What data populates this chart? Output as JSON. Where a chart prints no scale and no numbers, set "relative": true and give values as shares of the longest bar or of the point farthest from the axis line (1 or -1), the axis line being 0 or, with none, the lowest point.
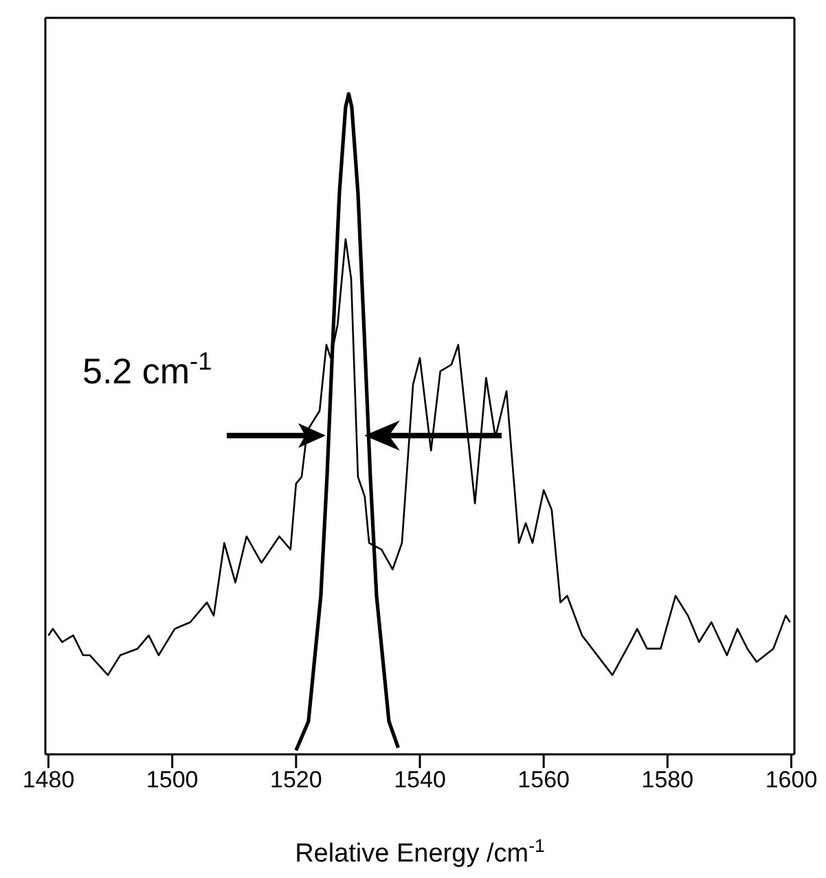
{
  "chart_data": {
    "type": "line",
    "xlabel": "Relative Energy /cm$^{-1}$",
    "relative": true,
    "xlim": [
      1479.5,
      1600.5
    ],
    "xticks": [
      1480,
      1500,
      1520,
      1540,
      1560,
      1580,
      1600
    ],
    "annotations": [
      "5.2 cm$^{-1}$"
    ],
    "series": [
      {
        "color": "#000000",
        "x": [
          1480.0,
          1480.7,
          1482.2,
          1484.0,
          1485.6,
          1486.7,
          1489.6,
          1491.6,
          1494.4,
          1496.2,
          1497.8,
          1500.4,
          1502.9,
          1505.6,
          1506.7,
          1508.4,
          1510.2,
          1512.0,
          1514.4,
          1517.3,
          1519.1,
          1520.0,
          1520.9,
          1521.8,
          1523.8,
          1524.9,
          1525.6,
          1526.7,
          1528.0,
          1528.9,
          1530.0,
          1531.1,
          1531.8,
          1533.8,
          1535.6,
          1537.1,
          1538.9,
          1540.0,
          1541.8,
          1543.3,
          1545.1,
          1546.2,
          1548.9,
          1550.7,
          1552.2,
          1554.0,
          1556.0,
          1557.1,
          1558.2,
          1560.0,
          1561.3,
          1562.7,
          1563.8,
          1566.2,
          1571.1,
          1574.0,
          1575.1,
          1576.7,
          1578.9,
          1581.3,
          1583.3,
          1585.1,
          1587.1,
          1589.6,
          1591.3,
          1592.9,
          1594.4,
          1597.1,
          1599.1,
          1599.8
        ],
        "values": [
          0.18,
          0.19,
          0.17,
          0.18,
          0.15,
          0.15,
          0.12,
          0.15,
          0.16,
          0.18,
          0.15,
          0.19,
          0.2,
          0.23,
          0.21,
          0.32,
          0.26,
          0.33,
          0.29,
          0.33,
          0.31,
          0.41,
          0.42,
          0.49,
          0.52,
          0.62,
          0.6,
          0.65,
          0.78,
          0.72,
          0.42,
          0.39,
          0.32,
          0.31,
          0.28,
          0.32,
          0.56,
          0.6,
          0.46,
          0.58,
          0.59,
          0.62,
          0.38,
          0.57,
          0.48,
          0.55,
          0.32,
          0.35,
          0.32,
          0.4,
          0.37,
          0.23,
          0.24,
          0.18,
          0.12,
          0.17,
          0.19,
          0.16,
          0.16,
          0.24,
          0.21,
          0.17,
          0.2,
          0.15,
          0.19,
          0.16,
          0.14,
          0.16,
          0.21,
          0.2
        ]
      },
      {
        "color": "#000000",
        "x": [
          1520,
          1522,
          1524,
          1525,
          1526,
          1527,
          1528,
          1528.5,
          1529,
          1530,
          1531,
          1532,
          1533,
          1535,
          1536.5
        ],
        "values": [
          0.006,
          0.05,
          0.24,
          0.42,
          0.64,
          0.85,
          0.98,
          1,
          0.98,
          0.85,
          0.64,
          0.42,
          0.24,
          0.05,
          0.01
        ]
      }
    ]
  }
}
